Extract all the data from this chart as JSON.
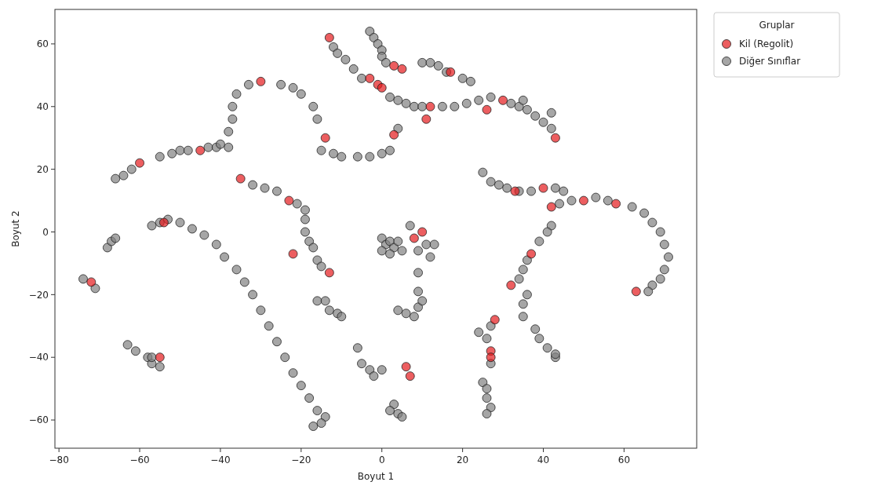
{
  "chart_data": {
    "type": "scatter",
    "xlabel": "Boyut 1",
    "ylabel": "Boyut 2",
    "legend_title": "Gruplar",
    "legend": "top right",
    "marker": "circle",
    "grid": false,
    "xlim": [
      -81,
      78
    ],
    "ylim": [
      -69,
      71
    ],
    "xticks": [
      -80,
      -60,
      -40,
      -20,
      0,
      20,
      40,
      60
    ],
    "yticks": [
      -60,
      -40,
      -20,
      0,
      20,
      40,
      60
    ],
    "series": [
      {
        "name": "Diğer Sınıflar",
        "color": "#808080",
        "x": [
          -57,
          -55,
          -53,
          -50,
          -47,
          -44,
          -41,
          -39,
          -36,
          -34,
          -32,
          -30,
          -28,
          -26,
          -24,
          -22,
          -20,
          -18,
          -16,
          -14,
          -15,
          -17,
          -38,
          -38,
          -37,
          -37,
          -36,
          -33,
          -25,
          -22,
          -20,
          -17,
          -16,
          -43,
          -41,
          -40,
          -55,
          -52,
          -50,
          -48,
          -66,
          -64,
          -62,
          -12,
          -11,
          -9,
          -7,
          -5,
          2,
          4,
          6,
          8,
          10,
          -3,
          -2,
          -1,
          0,
          0,
          1,
          10,
          12,
          14,
          16,
          20,
          22,
          4,
          15,
          18,
          21,
          24,
          27,
          32,
          34,
          36,
          38,
          40,
          42,
          42,
          35,
          -15,
          -12,
          -10,
          -6,
          -3,
          0,
          2,
          -32,
          -29,
          -26,
          -21,
          -19,
          -19,
          -19,
          -18,
          -17,
          -16,
          -15,
          -16,
          -14,
          -13,
          -11,
          -10,
          0,
          1,
          2,
          3,
          4,
          0,
          2,
          5,
          7,
          9,
          11,
          13,
          12,
          9,
          4,
          6,
          8,
          9,
          10,
          9,
          -6,
          -5,
          -3,
          -2,
          0,
          3,
          4,
          5,
          2,
          -74,
          -71,
          -68,
          -67,
          -66,
          -63,
          -61,
          -58,
          -57,
          -55,
          -57,
          25,
          27,
          29,
          31,
          34,
          37,
          43,
          45,
          44,
          47,
          53,
          56,
          62,
          65,
          67,
          69,
          70,
          71,
          70,
          69,
          67,
          66,
          42,
          41,
          39,
          36,
          35,
          34,
          36,
          35,
          35,
          27,
          26,
          27,
          25,
          26,
          26,
          27,
          26,
          38,
          39,
          41,
          43,
          43,
          24
        ],
        "values": [
          2,
          3,
          4,
          3,
          1,
          -1,
          -4,
          -8,
          -12,
          -16,
          -20,
          -25,
          -30,
          -35,
          -40,
          -45,
          -49,
          -53,
          -57,
          -59,
          -61,
          -62,
          27,
          32,
          36,
          40,
          44,
          47,
          47,
          46,
          44,
          40,
          36,
          27,
          27,
          28,
          24,
          25,
          26,
          26,
          17,
          18,
          20,
          59,
          57,
          55,
          52,
          49,
          43,
          42,
          41,
          40,
          40,
          64,
          62,
          60,
          58,
          56,
          54,
          54,
          54,
          53,
          51,
          49,
          48,
          33,
          40,
          40,
          41,
          42,
          43,
          41,
          40,
          39,
          37,
          35,
          33,
          38,
          42,
          26,
          25,
          24,
          24,
          24,
          25,
          26,
          15,
          14,
          13,
          9,
          7,
          4,
          0,
          -3,
          -5,
          -9,
          -11,
          -22,
          -22,
          -25,
          -26,
          -27,
          -2,
          -4,
          -3,
          -5,
          -3,
          -6,
          -7,
          -6,
          2,
          -6,
          -4,
          -4,
          -8,
          -13,
          -25,
          -26,
          -27,
          -24,
          -22,
          -19,
          -37,
          -42,
          -44,
          -46,
          -44,
          -55,
          -58,
          -59,
          -57,
          -15,
          -18,
          -5,
          -3,
          -2,
          -36,
          -38,
          -40,
          -42,
          -43,
          -40,
          19,
          16,
          15,
          14,
          13,
          13,
          14,
          13,
          9,
          10,
          11,
          10,
          8,
          6,
          3,
          0,
          -4,
          -8,
          -12,
          -15,
          -17,
          -19,
          2,
          0,
          -3,
          -9,
          -12,
          -15,
          -20,
          -23,
          -27,
          -30,
          -34,
          -42,
          -48,
          -50,
          -53,
          -56,
          -58,
          -31,
          -34,
          -37,
          -40,
          -39,
          -32
        ]
      },
      {
        "name": "Kil (Regolit)",
        "color": "#e41a1c",
        "x": [
          -54,
          -30,
          -14,
          -45,
          -60,
          -13,
          -3,
          -1,
          0,
          3,
          5,
          17,
          11,
          3,
          12,
          26,
          30,
          43,
          -35,
          -23,
          -22,
          -13,
          10,
          8,
          6,
          7,
          -72,
          -55,
          33,
          40,
          63,
          42,
          50,
          58,
          37,
          32,
          28,
          27,
          27
        ],
        "values": [
          3,
          48,
          30,
          26,
          22,
          62,
          49,
          47,
          46,
          53,
          52,
          51,
          36,
          31,
          40,
          39,
          42,
          30,
          17,
          10,
          -7,
          -13,
          0,
          -2,
          -43,
          -46,
          -16,
          -40,
          13,
          14,
          -19,
          8,
          10,
          9,
          -7,
          -17,
          -28,
          -38,
          -40
        ]
      }
    ]
  }
}
